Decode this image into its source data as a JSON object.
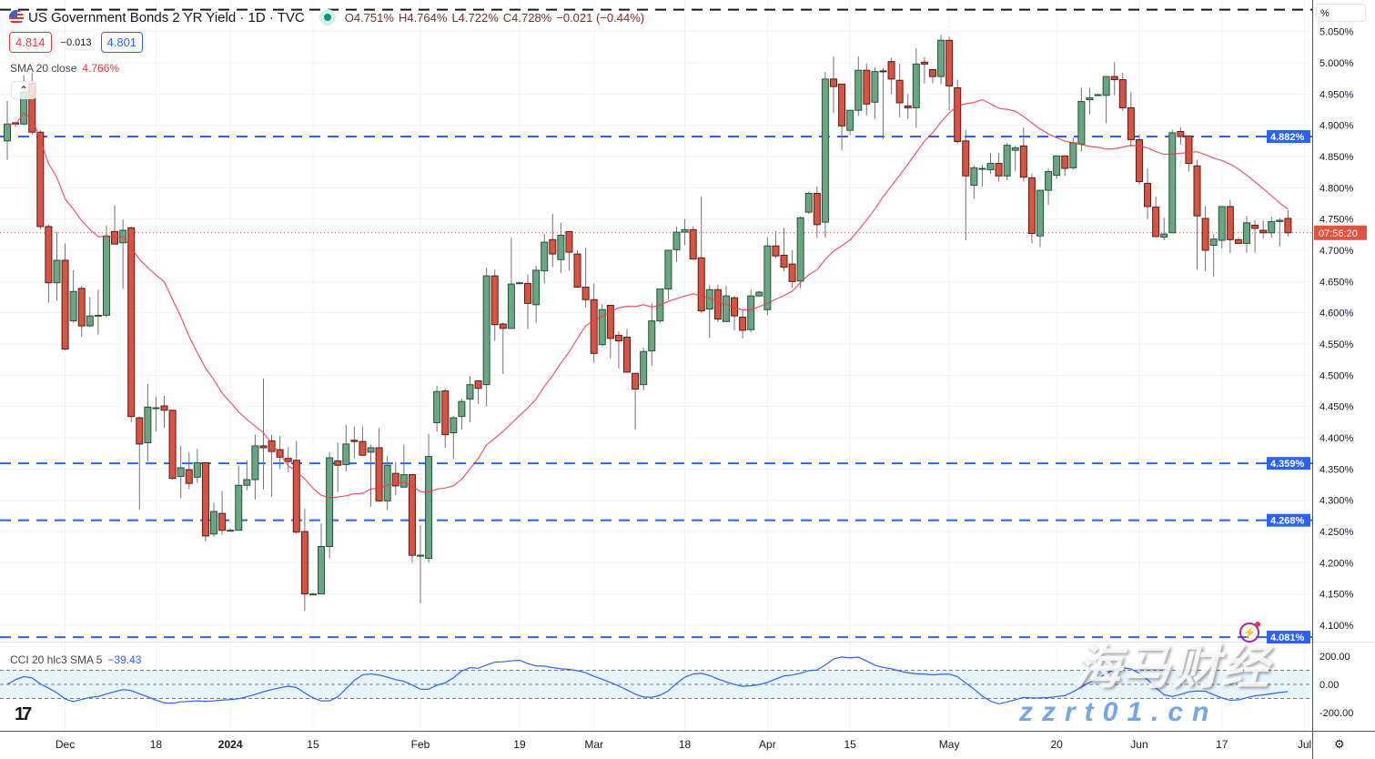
{
  "header": {
    "title": "US Government Bonds 2 YR Yield · 1D · TVC",
    "ohlc": {
      "open": "O4.751%",
      "high": "H4.764%",
      "low": "L4.722%",
      "close": "C4.728%",
      "change": "−0.021 (−0.44%)"
    },
    "market_status": "open",
    "sell_price": "4.814",
    "spread": "−0.013",
    "buy_price": "4.801",
    "collapse_icon": "chevron-up",
    "flag_icon": "us-flag"
  },
  "indicators": {
    "sma": {
      "label": "SMA 20 close",
      "value": "4.766%",
      "color": "#f23645"
    },
    "cci": {
      "label": "CCI 20 hlc3 SMA 5",
      "value": "−39.43",
      "color": "#2962ff"
    }
  },
  "price_axis": {
    "unit_button": "%",
    "ticks": [
      "5.050%",
      "5.000%",
      "4.950%",
      "4.900%",
      "4.850%",
      "4.800%",
      "4.750%",
      "4.700%",
      "4.650%",
      "4.600%",
      "4.550%",
      "4.500%",
      "4.450%",
      "4.400%",
      "4.350%",
      "4.300%",
      "4.250%",
      "4.200%",
      "4.150%",
      "4.100%"
    ],
    "countdown_label": "07:56:20"
  },
  "cci_axis": {
    "ticks": [
      "200.00",
      "0.00",
      "-200.00"
    ],
    "bands": [
      100,
      0,
      -100
    ]
  },
  "levels": [
    {
      "price": 4.882,
      "label": "4.882%",
      "color": "#2962ff"
    },
    {
      "price": 4.359,
      "label": "4.359%",
      "color": "#2962ff"
    },
    {
      "price": 4.268,
      "label": "4.268%",
      "color": "#2962ff"
    },
    {
      "price": 4.081,
      "label": "4.081%",
      "color": "#2962ff"
    },
    {
      "price": 5.085,
      "label": "",
      "color": "#131722"
    }
  ],
  "time_axis": [
    {
      "label": "Dec",
      "index": 7
    },
    {
      "label": "18",
      "index": 18
    },
    {
      "label": "2024",
      "index": 27
    },
    {
      "label": "15",
      "index": 37
    },
    {
      "label": "Feb",
      "index": 50
    },
    {
      "label": "19",
      "index": 62
    },
    {
      "label": "Mar",
      "index": 71
    },
    {
      "label": "18",
      "index": 82
    },
    {
      "label": "Apr",
      "index": 92
    },
    {
      "label": "15",
      "index": 102
    },
    {
      "label": "May",
      "index": 114
    },
    {
      "label": "20",
      "index": 127
    },
    {
      "label": "Jun",
      "index": 137
    },
    {
      "label": "17",
      "index": 147
    },
    {
      "label": "Jul",
      "index": 157
    }
  ],
  "colors": {
    "up": "#6ba583",
    "up_border": "#225437",
    "down": "#d75442",
    "down_border": "#5b1a13",
    "wick": "#737375",
    "last_price": "#f23645"
  },
  "branding": {
    "logo": "TV",
    "watermark": "海马财经",
    "watermark_url": "zzrt01.cn",
    "alert_icon": "lightning"
  },
  "chart_data": {
    "type": "candlestick",
    "title": "US Government Bonds 2 YR Yield · 1D · TVC",
    "ylim": [
      4.05,
      5.09
    ],
    "y_unit": "%",
    "grid": true,
    "last_price": 4.728,
    "ohlc": [
      [
        4.875,
        4.939,
        4.845,
        4.902
      ],
      [
        4.904,
        4.905,
        4.898,
        4.902
      ],
      [
        4.902,
        4.98,
        4.9,
        4.953
      ],
      [
        4.967,
        4.984,
        4.885,
        4.889
      ],
      [
        4.889,
        4.892,
        4.733,
        4.738
      ],
      [
        4.738,
        4.741,
        4.616,
        4.648
      ],
      [
        4.648,
        4.729,
        4.619,
        4.684
      ],
      [
        4.684,
        4.711,
        4.54,
        4.542
      ],
      [
        4.587,
        4.668,
        4.584,
        4.634
      ],
      [
        4.639,
        4.643,
        4.562,
        4.579
      ],
      [
        4.579,
        4.625,
        4.577,
        4.595
      ],
      [
        4.596,
        4.637,
        4.565,
        4.596
      ],
      [
        4.596,
        4.74,
        4.593,
        4.723
      ],
      [
        4.73,
        4.772,
        4.709,
        4.71
      ],
      [
        4.712,
        4.749,
        4.638,
        4.732
      ],
      [
        4.736,
        4.738,
        4.425,
        4.434
      ],
      [
        4.432,
        4.434,
        4.285,
        4.39
      ],
      [
        4.392,
        4.486,
        4.362,
        4.449
      ],
      [
        4.448,
        4.466,
        4.41,
        4.448
      ],
      [
        4.451,
        4.467,
        4.416,
        4.444
      ],
      [
        4.444,
        4.444,
        4.333,
        4.335
      ],
      [
        4.338,
        4.387,
        4.304,
        4.352
      ],
      [
        4.349,
        4.377,
        4.318,
        4.327
      ],
      [
        4.337,
        4.382,
        4.328,
        4.36
      ],
      [
        4.36,
        4.36,
        4.234,
        4.243
      ],
      [
        4.246,
        4.296,
        4.241,
        4.282
      ],
      [
        4.279,
        4.315,
        4.245,
        4.252
      ],
      [
        4.252,
        4.255,
        4.25,
        4.252
      ],
      [
        4.252,
        4.355,
        4.252,
        4.324
      ],
      [
        4.324,
        4.364,
        4.316,
        4.333
      ],
      [
        4.333,
        4.405,
        4.301,
        4.387
      ],
      [
        4.387,
        4.495,
        4.318,
        4.384
      ],
      [
        4.395,
        4.405,
        4.306,
        4.378
      ],
      [
        4.381,
        4.403,
        4.35,
        4.369
      ],
      [
        4.367,
        4.385,
        4.345,
        4.362
      ],
      [
        4.364,
        4.395,
        4.247,
        4.249
      ],
      [
        4.25,
        4.287,
        4.123,
        4.15
      ],
      [
        4.15,
        4.152,
        4.148,
        4.15
      ],
      [
        4.15,
        4.263,
        4.15,
        4.226
      ],
      [
        4.226,
        4.377,
        4.207,
        4.368
      ],
      [
        4.363,
        4.392,
        4.313,
        4.356
      ],
      [
        4.357,
        4.421,
        4.346,
        4.39
      ],
      [
        4.396,
        4.418,
        4.367,
        4.394
      ],
      [
        4.394,
        4.418,
        4.372,
        4.372
      ],
      [
        4.377,
        4.389,
        4.29,
        4.384
      ],
      [
        4.384,
        4.416,
        4.299,
        4.299
      ],
      [
        4.299,
        4.371,
        4.284,
        4.356
      ],
      [
        4.343,
        4.362,
        4.308,
        4.323
      ],
      [
        4.321,
        4.389,
        4.321,
        4.341
      ],
      [
        4.341,
        4.341,
        4.2,
        4.212
      ],
      [
        4.212,
        4.26,
        4.135,
        4.212
      ],
      [
        4.207,
        4.406,
        4.2,
        4.37
      ],
      [
        4.424,
        4.483,
        4.41,
        4.474
      ],
      [
        4.475,
        4.479,
        4.384,
        4.405
      ],
      [
        4.408,
        4.435,
        4.366,
        4.432
      ],
      [
        4.434,
        4.462,
        4.413,
        4.458
      ],
      [
        4.462,
        4.499,
        4.425,
        4.485
      ],
      [
        4.491,
        4.491,
        4.454,
        4.479
      ],
      [
        4.485,
        4.672,
        4.45,
        4.659
      ],
      [
        4.659,
        4.669,
        4.555,
        4.581
      ],
      [
        4.582,
        4.585,
        4.502,
        4.575
      ],
      [
        4.575,
        4.72,
        4.575,
        4.646
      ],
      [
        4.648,
        4.65,
        4.646,
        4.648
      ],
      [
        4.647,
        4.661,
        4.574,
        4.615
      ],
      [
        4.613,
        4.675,
        4.584,
        4.668
      ],
      [
        4.667,
        4.726,
        4.647,
        4.713
      ],
      [
        4.717,
        4.758,
        4.673,
        4.694
      ],
      [
        4.685,
        4.744,
        4.663,
        4.724
      ],
      [
        4.73,
        4.73,
        4.668,
        4.697
      ],
      [
        4.694,
        4.7,
        4.641,
        4.641
      ],
      [
        4.641,
        4.704,
        4.609,
        4.621
      ],
      [
        4.621,
        4.647,
        4.52,
        4.535
      ],
      [
        4.549,
        4.614,
        4.546,
        4.605
      ],
      [
        4.612,
        4.612,
        4.527,
        4.559
      ],
      [
        4.564,
        4.57,
        4.511,
        4.555
      ],
      [
        4.561,
        4.574,
        4.505,
        4.505
      ],
      [
        4.503,
        4.503,
        4.413,
        4.478
      ],
      [
        4.485,
        4.544,
        4.476,
        4.538
      ],
      [
        4.539,
        4.615,
        4.515,
        4.587
      ],
      [
        4.587,
        4.638,
        4.583,
        4.638
      ],
      [
        4.638,
        4.7,
        4.621,
        4.7
      ],
      [
        4.701,
        4.738,
        4.681,
        4.729
      ],
      [
        4.729,
        4.75,
        4.708,
        4.733
      ],
      [
        4.733,
        4.738,
        4.686,
        4.686
      ],
      [
        4.688,
        4.786,
        4.6,
        4.603
      ],
      [
        4.606,
        4.645,
        4.56,
        4.637
      ],
      [
        4.637,
        4.645,
        4.585,
        4.59
      ],
      [
        4.586,
        4.643,
        4.586,
        4.627
      ],
      [
        4.624,
        4.627,
        4.572,
        4.595
      ],
      [
        4.593,
        4.605,
        4.559,
        4.572
      ],
      [
        4.573,
        4.637,
        4.569,
        4.627
      ],
      [
        4.627,
        4.635,
        4.625,
        4.633
      ],
      [
        4.605,
        4.721,
        4.596,
        4.707
      ],
      [
        4.707,
        4.731,
        4.687,
        4.691
      ],
      [
        4.692,
        4.736,
        4.667,
        4.673
      ],
      [
        4.678,
        4.7,
        4.64,
        4.65
      ],
      [
        4.651,
        4.754,
        4.639,
        4.752
      ],
      [
        4.761,
        4.794,
        4.758,
        4.791
      ],
      [
        4.791,
        4.802,
        4.72,
        4.741
      ],
      [
        4.745,
        4.985,
        4.72,
        4.974
      ],
      [
        4.974,
        5.01,
        4.919,
        4.962
      ],
      [
        4.966,
        4.966,
        4.86,
        4.899
      ],
      [
        4.892,
        4.924,
        4.885,
        4.924
      ],
      [
        4.924,
        5.01,
        4.915,
        4.988
      ],
      [
        4.988,
        4.999,
        4.916,
        4.934
      ],
      [
        4.937,
        4.993,
        4.91,
        4.986
      ],
      [
        4.987,
        4.992,
        4.878,
        4.986
      ],
      [
        5.002,
        5.008,
        4.95,
        4.974
      ],
      [
        4.972,
        4.998,
        4.913,
        4.936
      ],
      [
        4.931,
        4.95,
        4.91,
        4.928
      ],
      [
        4.928,
        5.023,
        4.896,
        4.998
      ],
      [
        5.001,
        5.009,
        4.967,
        4.998
      ],
      [
        4.989,
        4.989,
        4.967,
        4.978
      ],
      [
        4.978,
        5.045,
        4.966,
        5.036
      ],
      [
        5.036,
        5.042,
        4.924,
        4.963
      ],
      [
        4.96,
        4.973,
        4.87,
        4.874
      ],
      [
        4.875,
        4.893,
        4.716,
        4.819
      ],
      [
        4.804,
        4.836,
        4.782,
        4.832
      ],
      [
        4.831,
        4.837,
        4.802,
        4.831
      ],
      [
        4.829,
        4.856,
        4.822,
        4.839
      ],
      [
        4.839,
        4.856,
        4.81,
        4.819
      ],
      [
        4.819,
        4.872,
        4.812,
        4.868
      ],
      [
        4.86,
        4.867,
        4.827,
        4.864
      ],
      [
        4.867,
        4.896,
        4.81,
        4.817
      ],
      [
        4.816,
        4.823,
        4.711,
        4.727
      ],
      [
        4.723,
        4.796,
        4.705,
        4.796
      ],
      [
        4.796,
        4.831,
        4.773,
        4.826
      ],
      [
        4.82,
        4.852,
        4.814,
        4.851
      ],
      [
        4.851,
        4.852,
        4.819,
        4.831
      ],
      [
        4.832,
        4.88,
        4.829,
        4.872
      ],
      [
        4.87,
        4.96,
        4.858,
        4.938
      ],
      [
        4.941,
        4.96,
        4.918,
        4.944
      ],
      [
        4.949,
        4.951,
        4.947,
        4.949
      ],
      [
        4.948,
        4.978,
        4.903,
        4.978
      ],
      [
        4.978,
        5.001,
        4.948,
        4.973
      ],
      [
        4.973,
        4.984,
        4.923,
        4.928
      ],
      [
        4.928,
        4.953,
        4.865,
        4.877
      ],
      [
        4.877,
        4.886,
        4.805,
        4.81
      ],
      [
        4.807,
        4.831,
        4.75,
        4.77
      ],
      [
        4.769,
        4.786,
        4.722,
        4.722
      ],
      [
        4.721,
        4.752,
        4.716,
        4.726
      ],
      [
        4.728,
        4.893,
        4.728,
        4.888
      ],
      [
        4.89,
        4.897,
        4.869,
        4.882
      ],
      [
        4.883,
        4.883,
        4.826,
        4.839
      ],
      [
        4.835,
        4.845,
        4.669,
        4.755
      ],
      [
        4.751,
        4.77,
        4.667,
        4.7
      ],
      [
        4.708,
        4.726,
        4.658,
        4.718
      ],
      [
        4.716,
        4.77,
        4.703,
        4.77
      ],
      [
        4.77,
        4.781,
        4.695,
        4.717
      ],
      [
        4.717,
        4.72,
        4.711,
        4.711
      ],
      [
        4.711,
        4.755,
        4.696,
        4.744
      ],
      [
        4.74,
        4.748,
        4.696,
        4.735
      ],
      [
        4.732,
        4.748,
        4.719,
        4.728
      ],
      [
        4.728,
        4.754,
        4.72,
        4.746
      ],
      [
        4.746,
        4.752,
        4.706,
        4.748
      ],
      [
        4.751,
        4.764,
        4.722,
        4.728
      ]
    ]
  }
}
